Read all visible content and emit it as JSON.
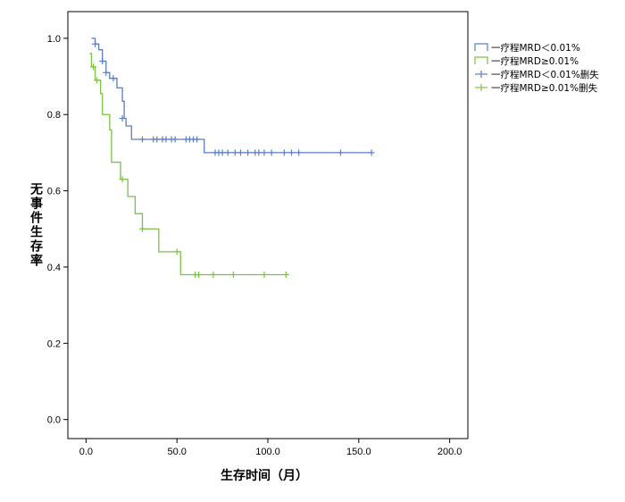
{
  "chart_data": {
    "type": "line",
    "subtype": "kaplan-meier",
    "title": "",
    "xlabel": "生存时间（月）",
    "ylabel": "无事件生存率",
    "xlim": [
      -10,
      210
    ],
    "ylim": [
      -0.05,
      1.07
    ],
    "x_ticks": [
      0,
      50,
      100,
      150,
      200
    ],
    "x_tick_labels": [
      "0.0",
      "50.0",
      "100.0",
      "150.0",
      "200.0"
    ],
    "y_ticks": [
      0,
      0.2,
      0.4,
      0.6,
      0.8,
      1.0
    ],
    "y_tick_labels": [
      "0.0",
      "0.2",
      "0.4",
      "0.6",
      "0.8",
      "1.0"
    ],
    "grid": false,
    "legend_position": "right",
    "legend": [
      {
        "label": "一疗程MRD＜0.01%",
        "kind": "line",
        "color": "#5b7fc0"
      },
      {
        "label": "一疗程MRD≥0.01%",
        "kind": "line",
        "color": "#7dc243"
      },
      {
        "label": "一疗程MRD＜0.01%删失",
        "kind": "censor",
        "color": "#5b7fc0"
      },
      {
        "label": "一疗程MRD≥0.01%删失",
        "kind": "censor",
        "color": "#7dc243"
      }
    ],
    "series": [
      {
        "color": "#5b7fc0",
        "steps": [
          [
            3,
            1.0
          ],
          [
            5,
            0.985
          ],
          [
            7,
            0.97
          ],
          [
            9,
            0.94
          ],
          [
            11,
            0.91
          ],
          [
            13,
            0.895
          ],
          [
            17,
            0.87
          ],
          [
            20,
            0.835
          ],
          [
            21,
            0.79
          ],
          [
            22,
            0.77
          ],
          [
            25,
            0.735
          ],
          [
            65,
            0.7
          ],
          [
            157,
            0.7
          ]
        ],
        "censored": [
          [
            5,
            0.985
          ],
          [
            9,
            0.94
          ],
          [
            11,
            0.91
          ],
          [
            15,
            0.895
          ],
          [
            20,
            0.79
          ],
          [
            31,
            0.735
          ],
          [
            37,
            0.735
          ],
          [
            39,
            0.735
          ],
          [
            42,
            0.735
          ],
          [
            44,
            0.735
          ],
          [
            47,
            0.735
          ],
          [
            49,
            0.735
          ],
          [
            55,
            0.735
          ],
          [
            57,
            0.735
          ],
          [
            59,
            0.735
          ],
          [
            61,
            0.735
          ],
          [
            71,
            0.7
          ],
          [
            73,
            0.7
          ],
          [
            75,
            0.7
          ],
          [
            78,
            0.7
          ],
          [
            82,
            0.7
          ],
          [
            85,
            0.7
          ],
          [
            89,
            0.7
          ],
          [
            93,
            0.7
          ],
          [
            95,
            0.7
          ],
          [
            98,
            0.7
          ],
          [
            102,
            0.7
          ],
          [
            109,
            0.7
          ],
          [
            113,
            0.7
          ],
          [
            117,
            0.7
          ],
          [
            140,
            0.7
          ],
          [
            157,
            0.7
          ]
        ]
      },
      {
        "color": "#7dc243",
        "steps": [
          [
            2,
            0.96
          ],
          [
            3,
            0.925
          ],
          [
            5,
            0.89
          ],
          [
            8,
            0.855
          ],
          [
            9,
            0.8
          ],
          [
            13,
            0.76
          ],
          [
            14,
            0.675
          ],
          [
            19,
            0.63
          ],
          [
            23,
            0.585
          ],
          [
            27,
            0.54
          ],
          [
            31,
            0.5
          ],
          [
            40,
            0.44
          ],
          [
            52,
            0.38
          ],
          [
            110,
            0.38
          ]
        ],
        "censored": [
          [
            4,
            0.925
          ],
          [
            6,
            0.89
          ],
          [
            20,
            0.63
          ],
          [
            31,
            0.5
          ],
          [
            50,
            0.44
          ],
          [
            60,
            0.38
          ],
          [
            62,
            0.38
          ],
          [
            70,
            0.38
          ],
          [
            81,
            0.38
          ],
          [
            98,
            0.38
          ],
          [
            110,
            0.38
          ]
        ]
      }
    ]
  }
}
